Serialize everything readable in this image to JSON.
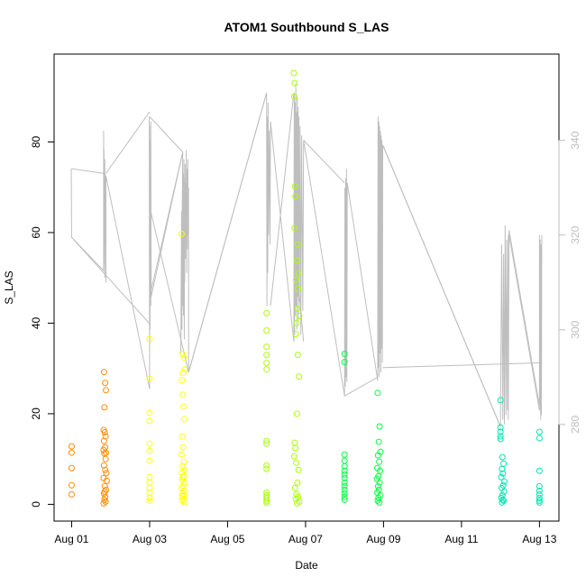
{
  "chart_data": {
    "type": "scatter",
    "title": "ATOM1 Southbound S_LAS",
    "xlabel": "Date",
    "ylabel": "S_LAS",
    "x_ticks": [
      "Aug 01",
      "Aug 03",
      "Aug 05",
      "Aug 07",
      "Aug 09",
      "Aug 11",
      "Aug 13"
    ],
    "x_tick_days": [
      1,
      3,
      5,
      7,
      9,
      11,
      13
    ],
    "xlim": [
      0.55,
      13.5
    ],
    "y_ticks": [
      0,
      20,
      40,
      60,
      80
    ],
    "ylim": [
      -3.7,
      99.4
    ],
    "y2_ticks": [
      280,
      300,
      320,
      340
    ],
    "y2lim": [
      259.6,
      358.2
    ],
    "grid": false,
    "legend": "none",
    "series": [
      {
        "color": "#ff8c00",
        "points": [
          [
            1.0,
            12.8
          ],
          [
            1.0,
            11.4
          ],
          [
            1.0,
            8.0
          ],
          [
            1.0,
            4.2
          ],
          [
            1.0,
            2.2
          ],
          [
            1.83,
            29.2
          ],
          [
            1.86,
            26.8
          ],
          [
            1.88,
            25.2
          ],
          [
            1.84,
            21.4
          ],
          [
            1.82,
            16.4
          ],
          [
            1.85,
            15.9
          ],
          [
            1.87,
            15.0
          ],
          [
            1.83,
            14.0
          ],
          [
            1.86,
            12.6
          ],
          [
            1.82,
            12.0
          ],
          [
            1.88,
            11.4
          ],
          [
            1.84,
            11.2
          ],
          [
            1.87,
            10.0
          ],
          [
            1.83,
            8.6
          ],
          [
            1.86,
            7.6
          ],
          [
            1.89,
            6.9
          ],
          [
            1.82,
            5.8
          ],
          [
            1.85,
            4.0
          ],
          [
            1.88,
            3.2
          ],
          [
            1.83,
            2.4
          ],
          [
            1.86,
            1.6
          ],
          [
            1.84,
            1.0
          ],
          [
            1.87,
            0.6
          ],
          [
            1.82,
            0.2
          ],
          [
            1.85,
            2.8
          ],
          [
            1.9,
            5.2
          ]
        ]
      },
      {
        "color": "#ffff00",
        "points": [
          [
            3.0,
            36.5
          ],
          [
            3.0,
            27.8
          ],
          [
            3.0,
            20.2
          ],
          [
            3.0,
            18.4
          ],
          [
            3.0,
            13.4
          ],
          [
            3.0,
            11.8
          ],
          [
            3.0,
            9.6
          ],
          [
            3.0,
            6.0
          ],
          [
            3.0,
            4.8
          ],
          [
            3.0,
            3.6
          ],
          [
            3.0,
            2.6
          ],
          [
            3.0,
            1.4
          ],
          [
            3.0,
            0.8
          ],
          [
            3.82,
            59.7
          ],
          [
            3.84,
            33.2
          ],
          [
            3.88,
            32.4
          ],
          [
            3.9,
            29.8
          ],
          [
            3.86,
            29.0
          ],
          [
            3.83,
            27.4
          ],
          [
            3.85,
            24.2
          ],
          [
            3.87,
            21.6
          ],
          [
            3.89,
            18.8
          ],
          [
            3.84,
            15.0
          ],
          [
            3.86,
            12.6
          ],
          [
            3.82,
            11.0
          ],
          [
            3.88,
            9.4
          ],
          [
            3.85,
            8.4
          ],
          [
            3.9,
            7.6
          ],
          [
            3.83,
            7.0
          ],
          [
            3.87,
            6.2
          ],
          [
            3.84,
            5.4
          ],
          [
            3.89,
            4.8
          ],
          [
            3.86,
            4.0
          ],
          [
            3.82,
            3.6
          ],
          [
            3.88,
            3.0
          ],
          [
            3.85,
            2.4
          ],
          [
            3.83,
            1.8
          ],
          [
            3.87,
            1.2
          ],
          [
            3.9,
            0.4
          ],
          [
            3.84,
            0.9
          ],
          [
            3.86,
            5.9
          ],
          [
            3.88,
            2.0
          ]
        ]
      },
      {
        "color": "#aaff00",
        "points": [
          [
            6.0,
            42.2
          ],
          [
            6.0,
            38.4
          ],
          [
            6.0,
            34.8
          ],
          [
            6.0,
            33.0
          ],
          [
            6.0,
            31.2
          ],
          [
            6.0,
            29.8
          ],
          [
            6.0,
            14.0
          ],
          [
            6.0,
            13.4
          ],
          [
            6.0,
            8.6
          ],
          [
            6.0,
            7.8
          ],
          [
            6.0,
            2.6
          ],
          [
            6.0,
            2.0
          ],
          [
            6.0,
            1.4
          ],
          [
            6.0,
            0.8
          ],
          [
            6.0,
            0.4
          ],
          [
            6.7,
            95.2
          ],
          [
            6.72,
            93.0
          ],
          [
            6.71,
            90.0
          ],
          [
            6.73,
            70.2
          ],
          [
            6.74,
            68.0
          ],
          [
            6.72,
            61.0
          ],
          [
            6.8,
            57.4
          ],
          [
            6.78,
            53.8
          ],
          [
            6.82,
            51.0
          ],
          [
            6.76,
            49.6
          ],
          [
            6.81,
            47.6
          ],
          [
            6.79,
            43.2
          ],
          [
            6.84,
            41.6
          ],
          [
            6.77,
            40.0
          ],
          [
            6.75,
            37.6
          ],
          [
            6.8,
            33.0
          ],
          [
            6.83,
            28.2
          ],
          [
            6.78,
            20.0
          ],
          [
            6.72,
            13.6
          ],
          [
            6.74,
            12.4
          ],
          [
            6.71,
            10.6
          ],
          [
            6.76,
            9.2
          ],
          [
            6.82,
            7.6
          ],
          [
            6.79,
            4.8
          ],
          [
            6.73,
            3.6
          ],
          [
            6.77,
            2.2
          ],
          [
            6.81,
            1.6
          ],
          [
            6.75,
            1.2
          ],
          [
            6.84,
            0.6
          ],
          [
            6.78,
            0.2
          ]
        ]
      },
      {
        "color": "#00ff40",
        "points": [
          [
            8.0,
            33.2
          ],
          [
            8.0,
            31.4
          ],
          [
            8.0,
            11.0
          ],
          [
            8.0,
            9.6
          ],
          [
            8.0,
            8.4
          ],
          [
            8.0,
            7.4
          ],
          [
            8.0,
            6.6
          ],
          [
            8.0,
            5.8
          ],
          [
            8.0,
            4.8
          ],
          [
            8.0,
            4.0
          ],
          [
            8.0,
            3.2
          ],
          [
            8.0,
            2.4
          ],
          [
            8.0,
            1.6
          ],
          [
            8.0,
            1.0
          ],
          [
            8.85,
            24.6
          ],
          [
            8.9,
            17.2
          ],
          [
            8.88,
            13.8
          ],
          [
            8.92,
            11.6
          ],
          [
            8.86,
            10.8
          ],
          [
            8.89,
            9.4
          ],
          [
            8.84,
            8.0
          ],
          [
            8.91,
            7.4
          ],
          [
            8.87,
            6.2
          ],
          [
            8.83,
            5.6
          ],
          [
            8.9,
            4.8
          ],
          [
            8.86,
            4.0
          ],
          [
            8.88,
            3.2
          ],
          [
            8.84,
            2.6
          ],
          [
            8.92,
            2.0
          ],
          [
            8.87,
            1.4
          ],
          [
            8.85,
            0.8
          ],
          [
            8.89,
            0.4
          ]
        ]
      },
      {
        "color": "#00e8b0",
        "points": [
          [
            12.0,
            23.0
          ],
          [
            12.0,
            17.0
          ],
          [
            12.0,
            16.0
          ],
          [
            12.0,
            15.0
          ],
          [
            12.0,
            14.4
          ],
          [
            12.05,
            10.4
          ],
          [
            12.08,
            9.0
          ],
          [
            12.04,
            7.8
          ],
          [
            12.06,
            6.8
          ],
          [
            12.02,
            6.0
          ],
          [
            12.1,
            5.0
          ],
          [
            12.07,
            4.2
          ],
          [
            12.03,
            3.6
          ],
          [
            12.09,
            2.8
          ],
          [
            12.05,
            2.0
          ],
          [
            12.02,
            1.4
          ],
          [
            12.08,
            0.8
          ],
          [
            12.04,
            0.4
          ],
          [
            12.06,
            1.0
          ],
          [
            13.0,
            16.0
          ],
          [
            13.0,
            14.6
          ],
          [
            13.0,
            7.4
          ],
          [
            13.0,
            4.0
          ],
          [
            13.0,
            3.0
          ],
          [
            13.0,
            2.2
          ],
          [
            13.0,
            1.4
          ],
          [
            13.0,
            0.8
          ],
          [
            13.0,
            0.4
          ]
        ]
      }
    ],
    "overlay_line": {
      "axis": "right",
      "color": "#bebebe",
      "x": [
        0.99,
        1.0,
        1.82,
        1.82,
        1.82,
        1.83,
        1.83,
        1.84,
        1.84,
        1.85,
        1.85,
        1.86,
        1.86,
        1.87,
        1.88,
        1.88,
        3.0,
        2.99,
        3.0,
        3.01,
        3.01,
        3.02,
        3.03,
        3.03,
        3.04,
        3.85,
        3.8,
        3.82,
        3.83,
        3.84,
        3.85,
        3.86,
        3.87,
        3.88,
        3.89,
        3.9,
        3.9,
        3.91,
        3.92,
        3.93,
        3.94,
        3.94,
        3.95,
        3.96,
        3.97,
        3.98,
        3.99,
        4.0,
        4.0,
        6.0,
        6.01,
        6.02,
        6.03,
        6.04,
        6.05,
        6.07,
        6.09,
        6.1,
        6.7,
        6.71,
        6.72,
        6.73,
        6.74,
        6.75,
        6.76,
        6.77,
        6.78,
        6.79,
        6.8,
        6.81,
        6.82,
        6.83,
        6.84,
        6.86,
        6.88,
        6.9,
        6.93,
        6.95,
        8.0,
        8.01,
        8.02,
        8.03,
        8.04,
        8.05,
        8.06,
        8.07,
        8.85,
        8.86,
        8.87,
        8.88,
        8.89,
        8.9,
        8.91,
        8.92,
        8.93,
        8.94,
        8.95,
        8.96,
        8.97,
        8.98,
        12.0,
        12.03,
        12.06,
        12.08,
        12.1,
        12.12,
        12.14,
        12.16,
        12.18,
        12.2,
        12.2,
        12.22,
        13.0,
        13.0,
        13.01,
        13.02,
        13.03,
        13.04,
        13.05,
        13.06
      ],
      "y": [
        334,
        319.5,
        312.5,
        327.5,
        342,
        314,
        338,
        316,
        331,
        311,
        336,
        318,
        333,
        325,
        310,
        332.5,
        287.5,
        345,
        295,
        340,
        300,
        343,
        305,
        344,
        307,
        337.5,
        295,
        325,
        300,
        329,
        305,
        333,
        303,
        336,
        298,
        332,
        310,
        335,
        315,
        331,
        320,
        338,
        312,
        334,
        317,
        336,
        320,
        330,
        291,
        350,
        305,
        345,
        312,
        348,
        320,
        342,
        318,
        344,
        297.5,
        350,
        299,
        348,
        303,
        352,
        305,
        346,
        300,
        349,
        307,
        347,
        302,
        345,
        306,
        343,
        299,
        341,
        304,
        340,
        286,
        330,
        288,
        332,
        290,
        334,
        289,
        331,
        289.3,
        345,
        292,
        344,
        290,
        343,
        295,
        342,
        291,
        341,
        296,
        340,
        293,
        339,
        279.5,
        318,
        281,
        316,
        280,
        322,
        282,
        319,
        283,
        320,
        281,
        321,
        284,
        320,
        283,
        319,
        281,
        318,
        282,
        320
      ],
      "connect": [
        [
          1.0,
          334
        ],
        [
          1.82,
          333
        ],
        [
          1.0,
          319.5
        ],
        [
          3.03,
          301
        ],
        [
          1.88,
          333
        ],
        [
          3.0,
          346
        ],
        [
          3.03,
          308
        ],
        [
          3.85,
          337.5
        ],
        [
          3.0,
          345
        ],
        [
          3.85,
          337.5
        ],
        [
          4.0,
          291
        ],
        [
          3.0,
          326
        ],
        [
          6.0,
          350
        ],
        [
          4.0,
          291
        ],
        [
          6.1,
          305
        ],
        [
          6.7,
          350
        ],
        [
          6.95,
          340
        ],
        [
          8.0,
          331
        ],
        [
          6.7,
          320
        ],
        [
          6.95,
          297.5
        ],
        [
          8.0,
          286
        ],
        [
          8.85,
          290
        ],
        [
          8.98,
          339
        ],
        [
          12.0,
          279.5
        ],
        [
          8.98,
          292
        ],
        [
          13.0,
          293
        ],
        [
          12.22,
          320
        ],
        [
          13.0,
          283
        ]
      ]
    }
  }
}
